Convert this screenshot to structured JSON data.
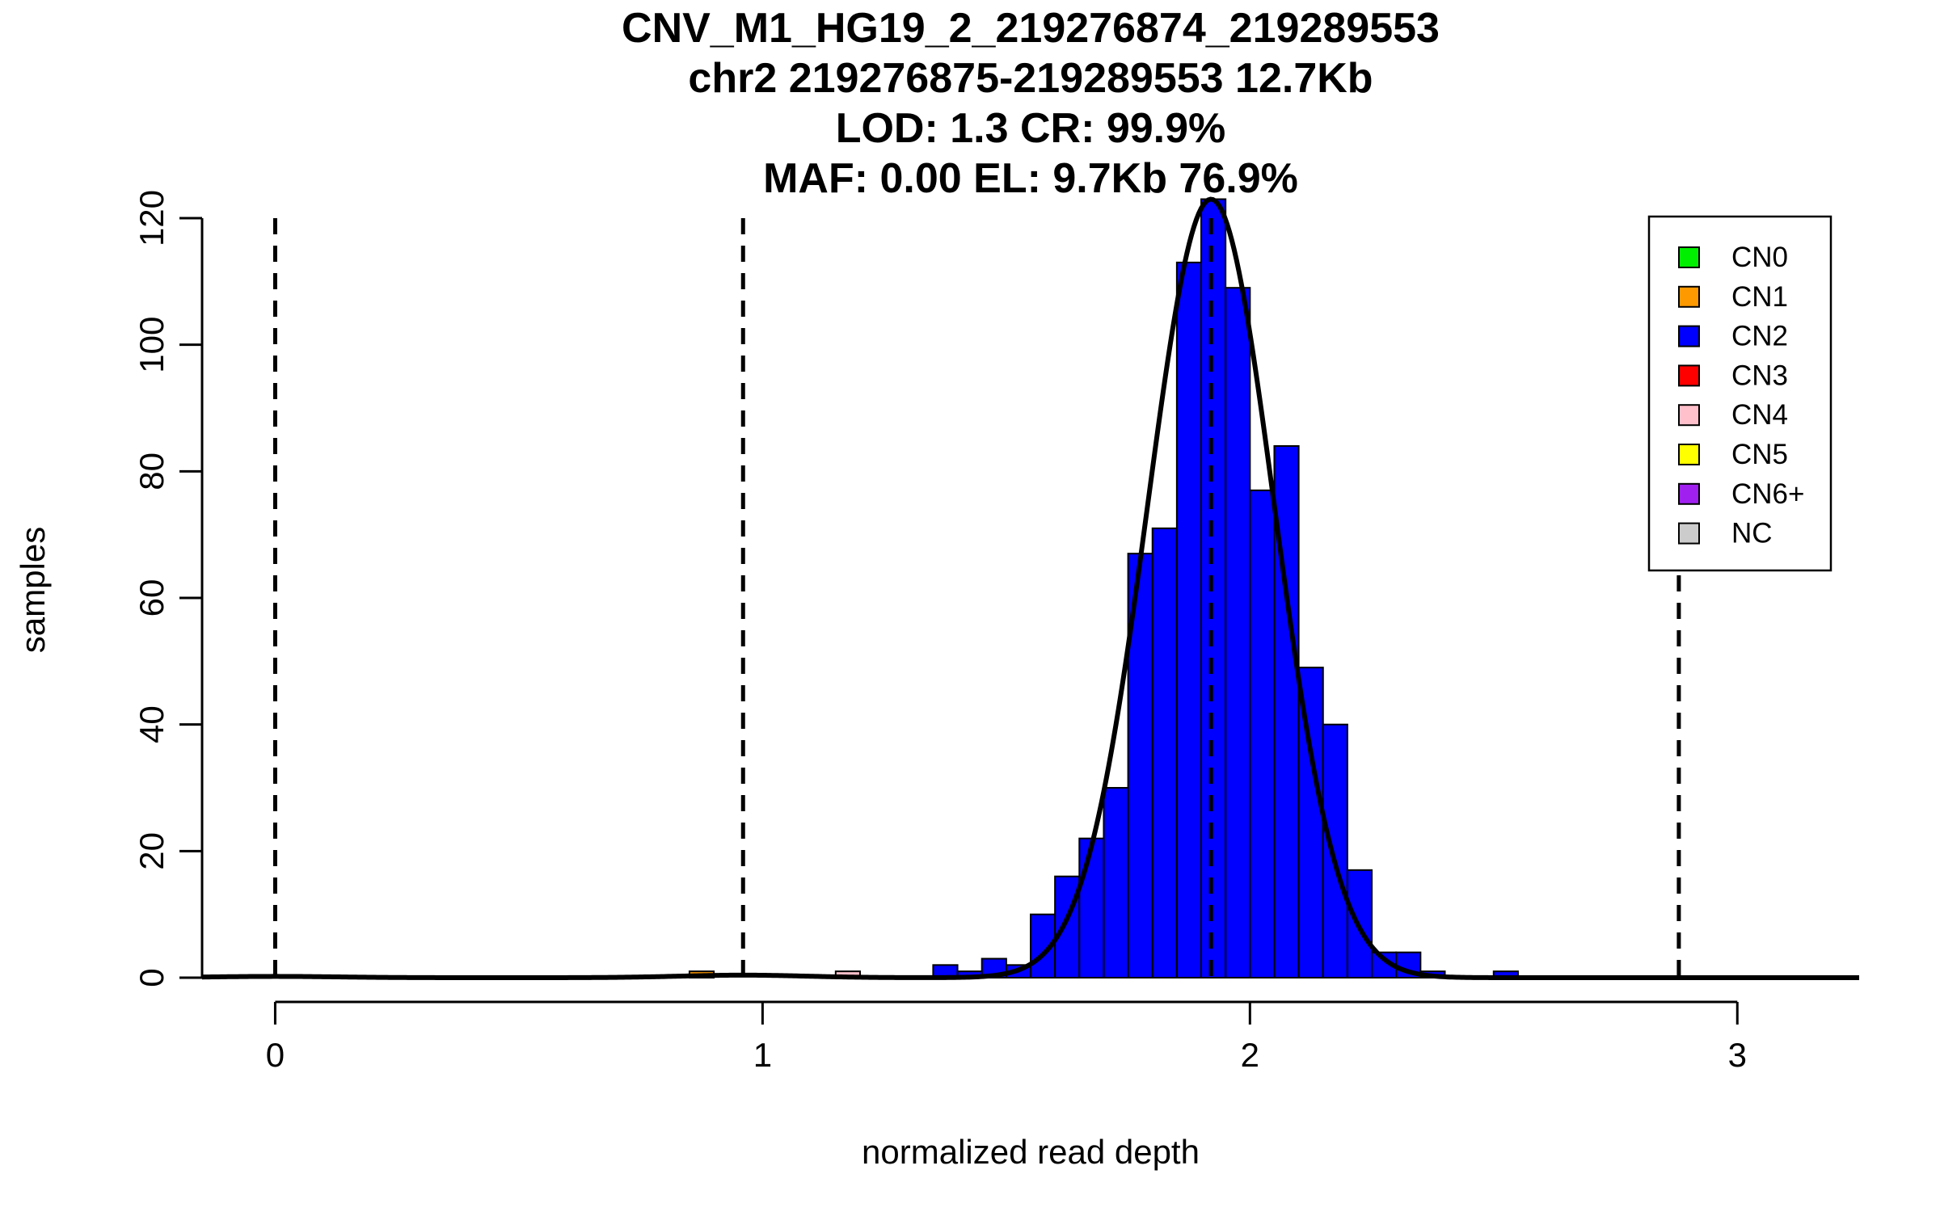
{
  "chart_data": {
    "type": "bar",
    "title_lines": [
      "CNV_M1_HG19_2_219276874_219289553",
      "chr2 219276875-219289553 12.7Kb",
      "LOD: 1.3 CR: 99.9%",
      "MAF: 0.00 EL: 9.7Kb 76.9%"
    ],
    "xlabel": "normalized read depth",
    "ylabel": "samples",
    "xlim": [
      -0.15,
      3.25
    ],
    "ylim": [
      0,
      120
    ],
    "x_ticks": [
      "0",
      "1",
      "2",
      "3"
    ],
    "y_ticks": [
      "0",
      "20",
      "40",
      "60",
      "80",
      "100",
      "120"
    ],
    "bin_width": 0.05,
    "bins": [
      {
        "x": 0.85,
        "count": 1,
        "class": "CN1"
      },
      {
        "x": 1.15,
        "count": 1,
        "class": "CN4"
      },
      {
        "x": 1.35,
        "count": 2,
        "class": "CN2"
      },
      {
        "x": 1.4,
        "count": 1,
        "class": "CN2"
      },
      {
        "x": 1.45,
        "count": 3,
        "class": "CN2"
      },
      {
        "x": 1.5,
        "count": 2,
        "class": "CN2"
      },
      {
        "x": 1.55,
        "count": 10,
        "class": "CN2"
      },
      {
        "x": 1.6,
        "count": 16,
        "class": "CN2"
      },
      {
        "x": 1.65,
        "count": 22,
        "class": "CN2"
      },
      {
        "x": 1.7,
        "count": 30,
        "class": "CN2"
      },
      {
        "x": 1.75,
        "count": 67,
        "class": "CN2"
      },
      {
        "x": 1.8,
        "count": 71,
        "class": "CN2"
      },
      {
        "x": 1.85,
        "count": 113,
        "class": "CN2"
      },
      {
        "x": 1.9,
        "count": 123,
        "class": "CN2"
      },
      {
        "x": 1.95,
        "count": 109,
        "class": "CN2"
      },
      {
        "x": 2.0,
        "count": 77,
        "class": "CN2"
      },
      {
        "x": 2.05,
        "count": 84,
        "class": "CN2"
      },
      {
        "x": 2.1,
        "count": 49,
        "class": "CN2"
      },
      {
        "x": 2.15,
        "count": 40,
        "class": "CN2"
      },
      {
        "x": 2.2,
        "count": 17,
        "class": "CN2"
      },
      {
        "x": 2.25,
        "count": 4,
        "class": "CN2"
      },
      {
        "x": 2.3,
        "count": 4,
        "class": "CN2"
      },
      {
        "x": 2.35,
        "count": 1,
        "class": "CN2"
      },
      {
        "x": 2.5,
        "count": 1,
        "class": "CN2"
      }
    ],
    "vertical_lines": [
      0,
      0.96,
      1.92,
      2.88
    ],
    "fit_curves": [
      {
        "mean": 1.92,
        "sd": 0.13,
        "peak": 123
      },
      {
        "mean": 0.96,
        "sd": 0.13,
        "peak": 0.4
      },
      {
        "mean": 0.0,
        "sd": 0.13,
        "peak": 0.2
      }
    ],
    "legend": {
      "position": "top-right",
      "items": [
        {
          "label": "CN0",
          "color": "#00ee00"
        },
        {
          "label": "CN1",
          "color": "#ff9900"
        },
        {
          "label": "CN2",
          "color": "#0000ff"
        },
        {
          "label": "CN3",
          "color": "#ff0000"
        },
        {
          "label": "CN4",
          "color": "#ffc0cb"
        },
        {
          "label": "CN5",
          "color": "#ffff00"
        },
        {
          "label": "CN6+",
          "color": "#a020f0"
        },
        {
          "label": "NC",
          "color": "#cccccc"
        }
      ]
    },
    "colors": {
      "CN0": "#00ee00",
      "CN1": "#ff9900",
      "CN2": "#0000ff",
      "CN3": "#ff0000",
      "CN4": "#ffc0cb",
      "CN5": "#ffff00",
      "CN6+": "#a020f0",
      "NC": "#cccccc"
    }
  }
}
